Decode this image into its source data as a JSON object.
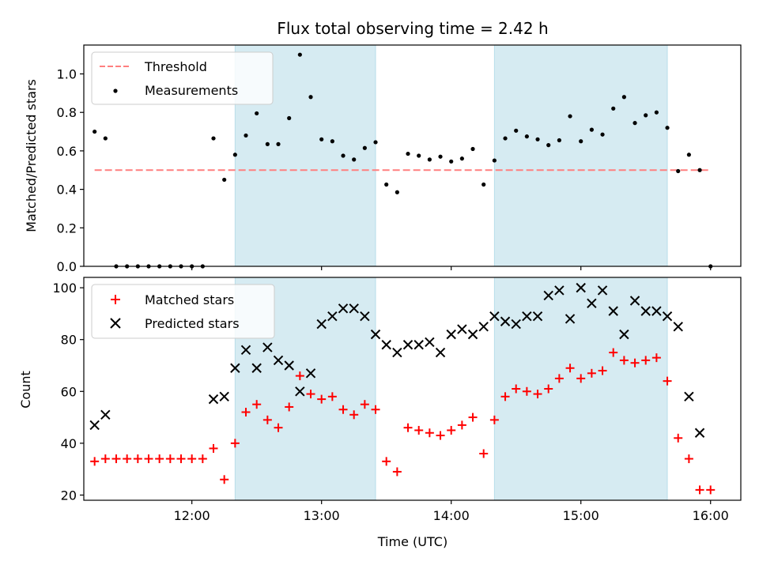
{
  "chart_data": [
    {
      "type": "scatter",
      "panel": "top",
      "title": "Flux total observing time = 2.42 h",
      "ylabel": "Matched/Predicted stars",
      "ylim": [
        0,
        1.15
      ],
      "yticks": [
        0.0,
        0.2,
        0.4,
        0.6,
        0.8,
        1.0
      ],
      "ytick_labels": [
        "0.0",
        "0.2",
        "0.4",
        "0.6",
        "0.8",
        "1.0"
      ],
      "xlim": [
        "11:10",
        "16:14"
      ],
      "threshold": {
        "name": "Threshold",
        "value": 0.5,
        "x_start": "11:15",
        "x_end": "16:00",
        "color": "#ff7f7f"
      },
      "series": [
        {
          "name": "Measurements",
          "color": "#000000",
          "marker": "dot",
          "x": [
            "11:15",
            "11:20",
            "11:25",
            "11:30",
            "11:35",
            "11:40",
            "11:45",
            "11:50",
            "11:55",
            "12:00",
            "12:05",
            "12:10",
            "12:15",
            "12:20",
            "12:25",
            "12:30",
            "12:35",
            "12:40",
            "12:45",
            "12:50",
            "12:55",
            "13:00",
            "13:05",
            "13:10",
            "13:15",
            "13:20",
            "13:25",
            "13:30",
            "13:35",
            "13:40",
            "13:45",
            "13:50",
            "13:55",
            "14:00",
            "14:05",
            "14:10",
            "14:15",
            "14:20",
            "14:25",
            "14:30",
            "14:35",
            "14:40",
            "14:45",
            "14:50",
            "14:55",
            "15:00",
            "15:05",
            "15:10",
            "15:15",
            "15:20",
            "15:25",
            "15:30",
            "15:35",
            "15:40",
            "15:45",
            "15:50",
            "15:55",
            "16:00"
          ],
          "y": [
            0.7,
            0.665,
            0.0,
            0.0,
            0.0,
            0.0,
            0.0,
            0.0,
            0.0,
            0.0,
            0.0,
            0.665,
            0.45,
            0.58,
            0.68,
            0.795,
            0.635,
            0.635,
            0.77,
            1.1,
            0.88,
            0.66,
            0.65,
            0.575,
            0.555,
            0.615,
            0.645,
            0.425,
            0.385,
            0.585,
            0.575,
            0.555,
            0.57,
            0.545,
            0.56,
            0.61,
            0.425,
            0.55,
            0.665,
            0.705,
            0.675,
            0.66,
            0.63,
            0.655,
            0.78,
            0.65,
            0.71,
            0.685,
            0.82,
            0.88,
            0.745,
            0.785,
            0.8,
            0.72,
            0.495,
            0.58,
            0.5,
            0.0
          ]
        }
      ],
      "shaded_regions": [
        [
          "12:20",
          "13:25"
        ],
        [
          "14:20",
          "15:40"
        ]
      ],
      "legend_position": "upper-left"
    },
    {
      "type": "scatter",
      "panel": "bottom",
      "xlabel": "Time (UTC)",
      "ylabel": "Count",
      "ylim": [
        18,
        104
      ],
      "yticks": [
        20,
        40,
        60,
        80,
        100
      ],
      "ytick_labels": [
        "20",
        "40",
        "60",
        "80",
        "100"
      ],
      "xlim": [
        "11:10",
        "16:14"
      ],
      "xticks": [
        "12:00",
        "13:00",
        "14:00",
        "15:00",
        "16:00"
      ],
      "xtick_labels": [
        "12:00",
        "13:00",
        "14:00",
        "15:00",
        "16:00"
      ],
      "series": [
        {
          "name": "Matched stars",
          "color": "#ff0000",
          "marker": "plus",
          "x": [
            "11:15",
            "11:20",
            "11:25",
            "11:30",
            "11:35",
            "11:40",
            "11:45",
            "11:50",
            "11:55",
            "12:00",
            "12:05",
            "12:10",
            "12:15",
            "12:20",
            "12:25",
            "12:30",
            "12:35",
            "12:40",
            "12:45",
            "12:50",
            "12:55",
            "13:00",
            "13:05",
            "13:10",
            "13:15",
            "13:20",
            "13:25",
            "13:30",
            "13:35",
            "13:40",
            "13:45",
            "13:50",
            "13:55",
            "14:00",
            "14:05",
            "14:10",
            "14:15",
            "14:20",
            "14:25",
            "14:30",
            "14:35",
            "14:40",
            "14:45",
            "14:50",
            "14:55",
            "15:00",
            "15:05",
            "15:10",
            "15:15",
            "15:20",
            "15:25",
            "15:30",
            "15:35",
            "15:40",
            "15:45",
            "15:50",
            "15:55",
            "16:00"
          ],
          "y": [
            33,
            34,
            34,
            34,
            34,
            34,
            34,
            34,
            34,
            34,
            34,
            38,
            26,
            40,
            52,
            55,
            49,
            46,
            54,
            66,
            59,
            57,
            58,
            53,
            51,
            55,
            53,
            33,
            29,
            46,
            45,
            44,
            43,
            45,
            47,
            50,
            36,
            49,
            58,
            61,
            60,
            59,
            61,
            65,
            69,
            65,
            67,
            68,
            75,
            72,
            71,
            72,
            73,
            64,
            42,
            34,
            22,
            22
          ]
        },
        {
          "name": "Predicted stars",
          "color": "#000000",
          "marker": "cross",
          "x": [
            "11:15",
            "11:20",
            "12:10",
            "12:15",
            "12:20",
            "12:25",
            "12:30",
            "12:35",
            "12:40",
            "12:45",
            "12:50",
            "12:55",
            "13:00",
            "13:05",
            "13:10",
            "13:15",
            "13:20",
            "13:25",
            "13:30",
            "13:35",
            "13:40",
            "13:45",
            "13:50",
            "13:55",
            "14:00",
            "14:05",
            "14:10",
            "14:15",
            "14:20",
            "14:25",
            "14:30",
            "14:35",
            "14:40",
            "14:45",
            "14:50",
            "14:55",
            "15:00",
            "15:05",
            "15:10",
            "15:15",
            "15:20",
            "15:25",
            "15:30",
            "15:35",
            "15:40",
            "15:45",
            "15:50",
            "15:55"
          ],
          "y": [
            47,
            51,
            57,
            58,
            69,
            76,
            69,
            77,
            72,
            70,
            60,
            67,
            86,
            89,
            92,
            92,
            89,
            82,
            78,
            75,
            78,
            78,
            79,
            75,
            82,
            84,
            82,
            85,
            89,
            87,
            86,
            89,
            89,
            97,
            99,
            88,
            100,
            94,
            99,
            91,
            82,
            95,
            91,
            91,
            89,
            85,
            58,
            44
          ]
        }
      ],
      "shaded_regions": [
        [
          "12:20",
          "13:25"
        ],
        [
          "14:20",
          "15:40"
        ]
      ],
      "legend_position": "upper-left"
    }
  ]
}
